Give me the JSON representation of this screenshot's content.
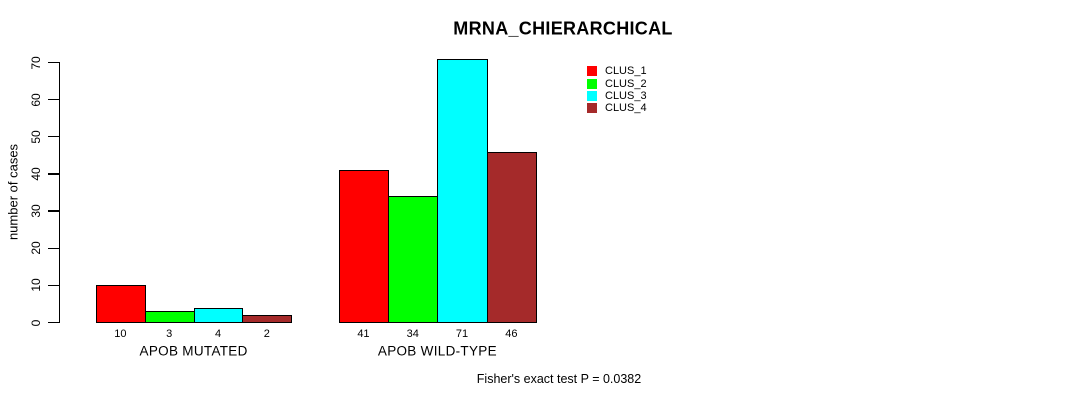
{
  "figure": {
    "background": "#FFFFFF",
    "text_color": "#000000",
    "bar_border_color": "#000000"
  },
  "chart_data": {
    "type": "bar",
    "title": "MRNA_CHIERARCHICAL",
    "ylabel": "number of cases",
    "xlabel": "",
    "annotation": "Fisher's exact test P = 0.0382",
    "ylim": [
      0,
      70
    ],
    "yticks": [
      0,
      10,
      20,
      30,
      40,
      50,
      60,
      70
    ],
    "categories": [
      "APOB MUTATED",
      "APOB WILD-TYPE"
    ],
    "series": [
      {
        "name": "CLUS_1",
        "color": "#FF0000",
        "values": [
          10,
          41
        ]
      },
      {
        "name": "CLUS_2",
        "color": "#00FF00",
        "values": [
          3,
          34
        ]
      },
      {
        "name": "CLUS_3",
        "color": "#00FFFF",
        "values": [
          4,
          71
        ]
      },
      {
        "name": "CLUS_4",
        "color": "#A52A2A",
        "values": [
          2,
          46
        ]
      }
    ],
    "bar_value_labels": [
      [
        "10",
        "3",
        "4",
        "2"
      ],
      [
        "41",
        "34",
        "71",
        "46"
      ]
    ],
    "legend": {
      "position": "top-right",
      "entries": [
        "CLUS_1",
        "CLUS_2",
        "CLUS_3",
        "CLUS_4"
      ]
    },
    "grid": false
  }
}
